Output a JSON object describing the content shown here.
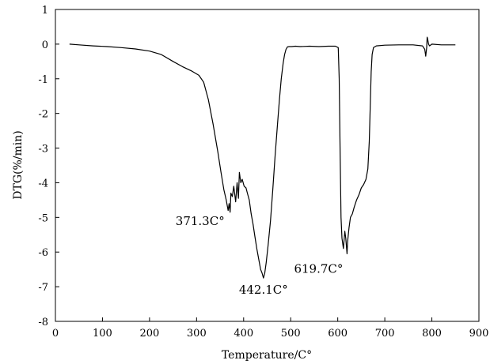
{
  "chart_data": {
    "type": "line",
    "title": "",
    "xlabel": "Temperature/C°",
    "ylabel": "DTG(%/min)",
    "xlim": [
      0,
      900
    ],
    "ylim": [
      -8,
      1
    ],
    "xticks": [
      0,
      100,
      200,
      300,
      400,
      500,
      600,
      700,
      800,
      900
    ],
    "yticks": [
      1,
      0,
      -1,
      -2,
      -3,
      -4,
      -5,
      -6,
      -7,
      -8
    ],
    "grid": false,
    "series": [
      {
        "x": [
          30,
          50,
          80,
          110,
          140,
          170,
          200,
          225,
          250,
          270,
          290,
          305,
          315,
          325,
          335,
          345,
          352,
          358,
          363,
          367,
          369,
          371.3,
          373,
          376,
          379,
          383,
          386,
          389,
          391,
          394,
          397,
          401,
          405,
          408,
          412,
          416,
          420,
          424,
          428,
          432,
          436,
          439,
          442.1,
          445,
          448,
          452,
          457,
          462,
          467,
          472,
          476,
          480,
          484,
          487,
          490,
          493,
          497,
          502,
          510,
          520,
          540,
          560,
          580,
          595,
          601,
          603,
          605,
          607,
          609,
          612,
          615,
          617,
          619.7,
          621,
          624,
          627,
          631,
          635,
          640,
          645,
          650,
          655,
          660,
          664,
          667,
          669,
          671,
          673,
          676,
          682,
          700,
          730,
          760,
          780,
          785,
          787,
          789,
          790,
          791,
          793,
          795,
          800,
          820,
          850
        ],
        "y": [
          0.0,
          -0.02,
          -0.05,
          -0.07,
          -0.1,
          -0.14,
          -0.2,
          -0.3,
          -0.5,
          -0.65,
          -0.78,
          -0.9,
          -1.1,
          -1.6,
          -2.3,
          -3.1,
          -3.7,
          -4.2,
          -4.5,
          -4.8,
          -4.6,
          -4.85,
          -4.3,
          -4.4,
          -4.1,
          -4.55,
          -4.0,
          -4.45,
          -3.7,
          -4.0,
          -3.9,
          -4.1,
          -4.15,
          -4.3,
          -4.5,
          -4.9,
          -5.2,
          -5.55,
          -5.9,
          -6.2,
          -6.5,
          -6.6,
          -6.75,
          -6.6,
          -6.3,
          -5.8,
          -5.1,
          -4.2,
          -3.2,
          -2.3,
          -1.6,
          -1.0,
          -0.55,
          -0.3,
          -0.15,
          -0.08,
          -0.07,
          -0.07,
          -0.06,
          -0.07,
          -0.06,
          -0.07,
          -0.06,
          -0.06,
          -0.1,
          -1.0,
          -3.0,
          -5.0,
          -5.6,
          -5.9,
          -5.4,
          -5.6,
          -6.05,
          -5.7,
          -5.3,
          -5.0,
          -4.9,
          -4.7,
          -4.5,
          -4.35,
          -4.15,
          -4.05,
          -3.9,
          -3.6,
          -2.8,
          -1.8,
          -0.8,
          -0.3,
          -0.1,
          -0.05,
          -0.03,
          -0.02,
          -0.02,
          -0.05,
          -0.15,
          -0.35,
          -0.1,
          0.2,
          0.15,
          0.0,
          -0.05,
          0.0,
          -0.02,
          -0.02
        ]
      }
    ],
    "annotations": [
      {
        "text": "371.3C°",
        "x": 371.3,
        "y": -4.85
      },
      {
        "text": "442.1C°",
        "x": 442.1,
        "y": -6.75
      },
      {
        "text": "619.7C°",
        "x": 619.7,
        "y": -6.05
      }
    ]
  }
}
